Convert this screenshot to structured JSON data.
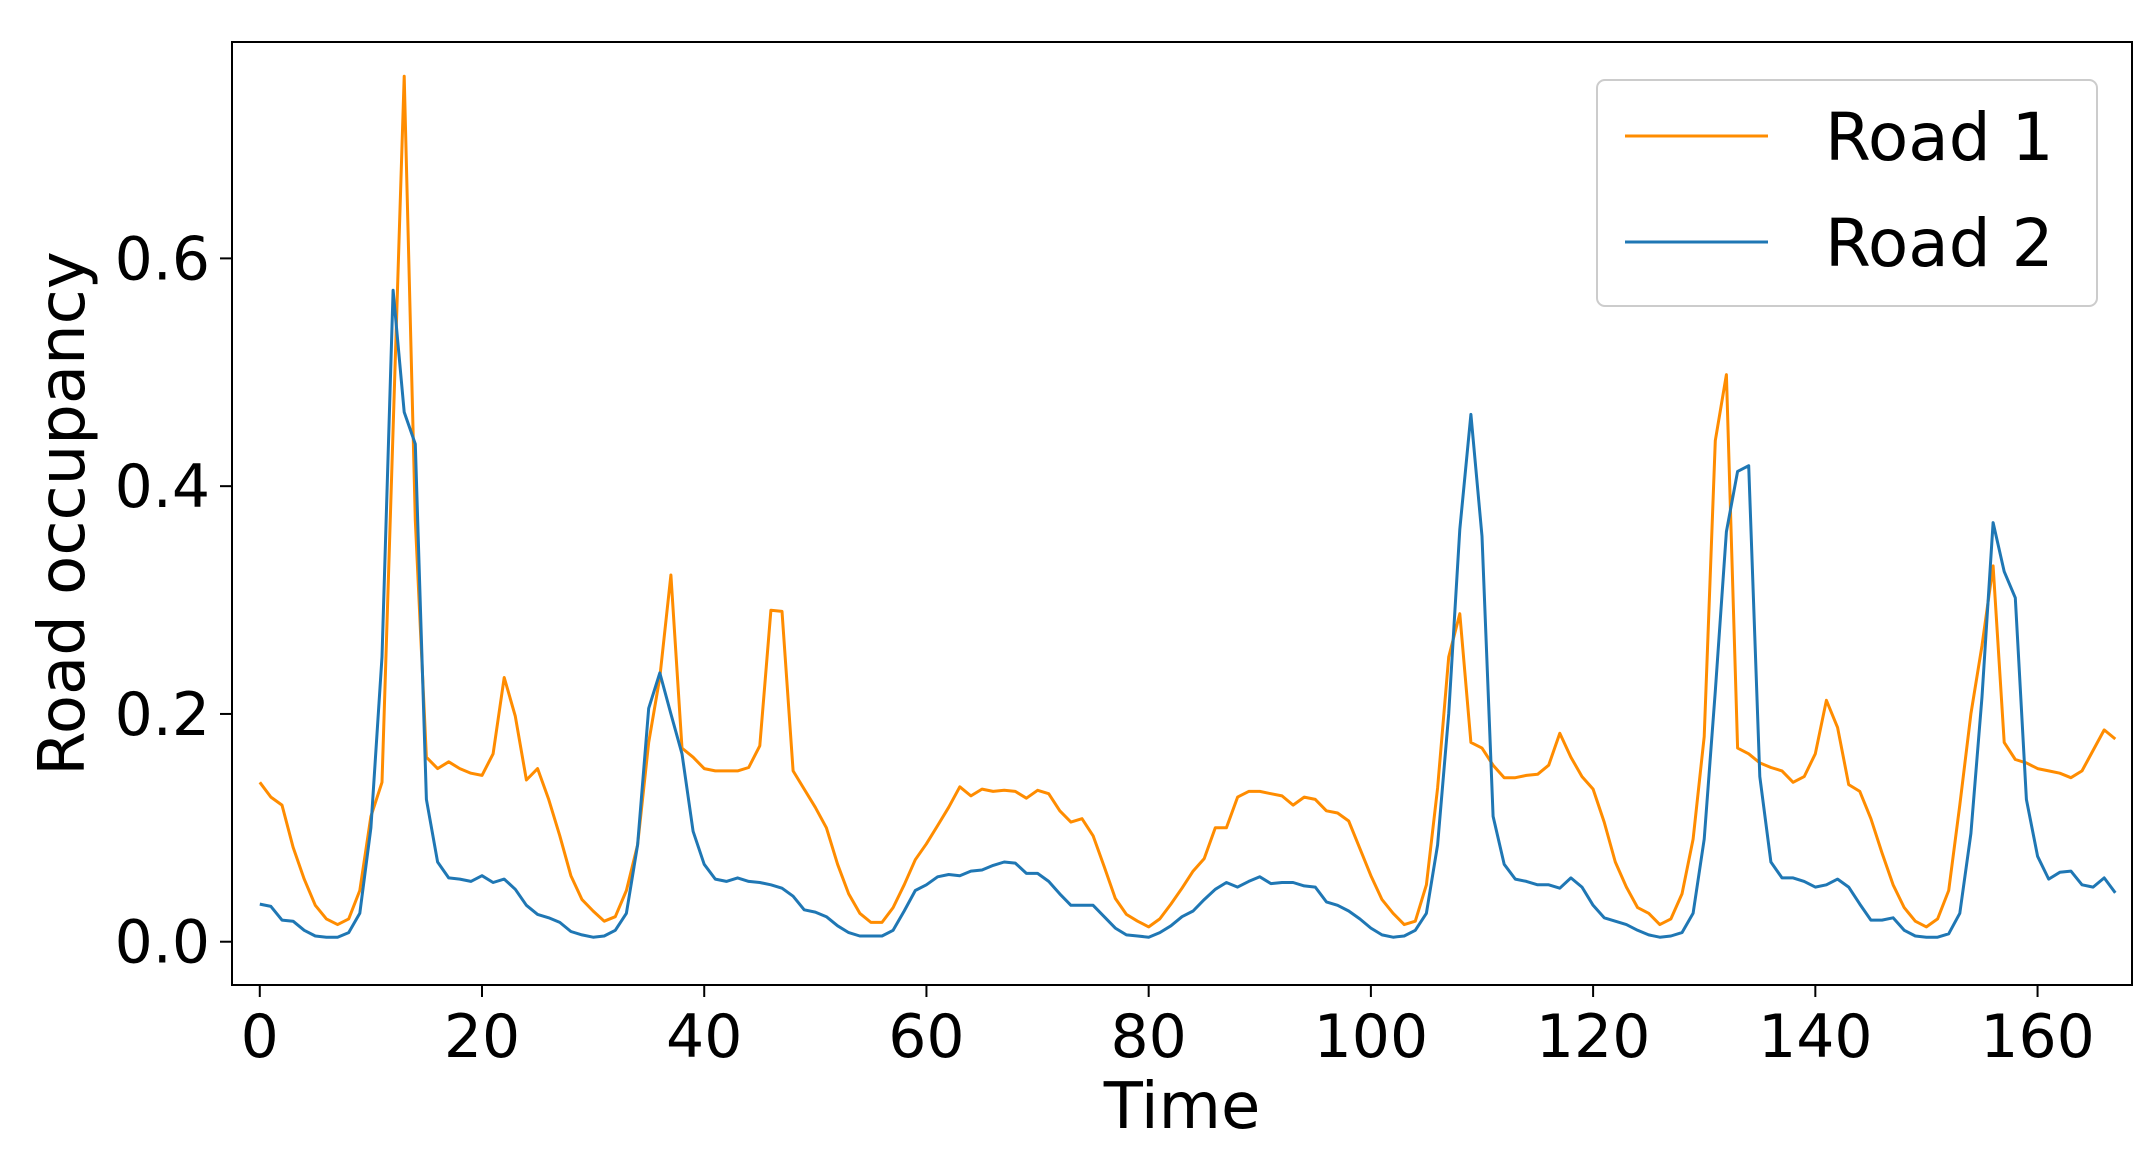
{
  "chart_data": {
    "type": "line",
    "xlabel": "Time",
    "ylabel": "Road occupancy",
    "xlim": [
      -2.5,
      168.5
    ],
    "ylim": [
      -0.038,
      0.79
    ],
    "x_ticks": [
      0,
      20,
      40,
      60,
      80,
      100,
      120,
      140,
      160
    ],
    "y_ticks": [
      0.0,
      0.2,
      0.4,
      0.6
    ],
    "y_tick_labels": [
      "0.0",
      "0.2",
      "0.4",
      "0.6"
    ],
    "grid": false,
    "legend_position": "top-right",
    "series": [
      {
        "name": "Road 1",
        "color": "#ff8c00",
        "values": [
          0.14,
          0.127,
          0.12,
          0.083,
          0.055,
          0.032,
          0.02,
          0.015,
          0.02,
          0.045,
          0.11,
          0.14,
          0.45,
          0.76,
          0.37,
          0.162,
          0.152,
          0.158,
          0.152,
          0.148,
          0.146,
          0.165,
          0.232,
          0.198,
          0.142,
          0.152,
          0.125,
          0.093,
          0.058,
          0.037,
          0.027,
          0.018,
          0.022,
          0.045,
          0.085,
          0.175,
          0.232,
          0.322,
          0.17,
          0.162,
          0.152,
          0.15,
          0.15,
          0.15,
          0.153,
          0.172,
          0.291,
          0.29,
          0.15,
          0.134,
          0.118,
          0.1,
          0.068,
          0.042,
          0.025,
          0.017,
          0.017,
          0.03,
          0.05,
          0.072,
          0.086,
          0.102,
          0.118,
          0.136,
          0.128,
          0.134,
          0.132,
          0.133,
          0.132,
          0.126,
          0.133,
          0.13,
          0.115,
          0.105,
          0.108,
          0.093,
          0.066,
          0.038,
          0.024,
          0.018,
          0.013,
          0.02,
          0.033,
          0.047,
          0.062,
          0.073,
          0.1,
          0.1,
          0.127,
          0.132,
          0.132,
          0.13,
          0.128,
          0.12,
          0.127,
          0.125,
          0.115,
          0.113,
          0.106,
          0.082,
          0.058,
          0.037,
          0.025,
          0.015,
          0.018,
          0.05,
          0.135,
          0.25,
          0.288,
          0.175,
          0.17,
          0.155,
          0.144,
          0.144,
          0.146,
          0.147,
          0.155,
          0.183,
          0.162,
          0.145,
          0.134,
          0.105,
          0.07,
          0.048,
          0.03,
          0.025,
          0.015,
          0.02,
          0.042,
          0.09,
          0.18,
          0.44,
          0.498,
          0.17,
          0.165,
          0.157,
          0.153,
          0.15,
          0.14,
          0.145,
          0.165,
          0.212,
          0.188,
          0.138,
          0.132,
          0.108,
          0.078,
          0.05,
          0.03,
          0.018,
          0.013,
          0.02,
          0.045,
          0.12,
          0.2,
          0.26,
          0.33,
          0.175,
          0.16,
          0.157,
          0.152,
          0.15,
          0.148,
          0.144,
          0.15,
          0.168,
          0.186,
          0.178
        ]
      },
      {
        "name": "Road 2",
        "color": "#1f77b4",
        "values": [
          0.033,
          0.031,
          0.019,
          0.018,
          0.01,
          0.005,
          0.004,
          0.004,
          0.008,
          0.025,
          0.1,
          0.25,
          0.572,
          0.465,
          0.437,
          0.125,
          0.07,
          0.056,
          0.055,
          0.053,
          0.058,
          0.052,
          0.055,
          0.046,
          0.032,
          0.024,
          0.021,
          0.017,
          0.009,
          0.006,
          0.004,
          0.005,
          0.01,
          0.025,
          0.085,
          0.205,
          0.236,
          0.2,
          0.165,
          0.097,
          0.068,
          0.055,
          0.053,
          0.056,
          0.053,
          0.052,
          0.05,
          0.047,
          0.04,
          0.028,
          0.026,
          0.022,
          0.014,
          0.008,
          0.005,
          0.005,
          0.005,
          0.01,
          0.027,
          0.045,
          0.05,
          0.057,
          0.059,
          0.058,
          0.062,
          0.063,
          0.067,
          0.07,
          0.069,
          0.06,
          0.06,
          0.053,
          0.042,
          0.032,
          0.032,
          0.032,
          0.022,
          0.012,
          0.006,
          0.005,
          0.004,
          0.008,
          0.014,
          0.022,
          0.027,
          0.037,
          0.046,
          0.052,
          0.048,
          0.053,
          0.057,
          0.051,
          0.052,
          0.052,
          0.049,
          0.048,
          0.035,
          0.032,
          0.027,
          0.02,
          0.012,
          0.006,
          0.004,
          0.005,
          0.01,
          0.025,
          0.085,
          0.2,
          0.362,
          0.463,
          0.356,
          0.11,
          0.068,
          0.055,
          0.053,
          0.05,
          0.05,
          0.047,
          0.056,
          0.048,
          0.032,
          0.021,
          0.018,
          0.015,
          0.01,
          0.006,
          0.004,
          0.005,
          0.008,
          0.025,
          0.09,
          0.22,
          0.36,
          0.413,
          0.418,
          0.145,
          0.07,
          0.056,
          0.056,
          0.053,
          0.048,
          0.05,
          0.055,
          0.048,
          0.033,
          0.019,
          0.019,
          0.021,
          0.01,
          0.005,
          0.004,
          0.004,
          0.007,
          0.025,
          0.095,
          0.215,
          0.368,
          0.325,
          0.302,
          0.125,
          0.075,
          0.055,
          0.061,
          0.062,
          0.05,
          0.048,
          0.056,
          0.043
        ]
      }
    ]
  }
}
